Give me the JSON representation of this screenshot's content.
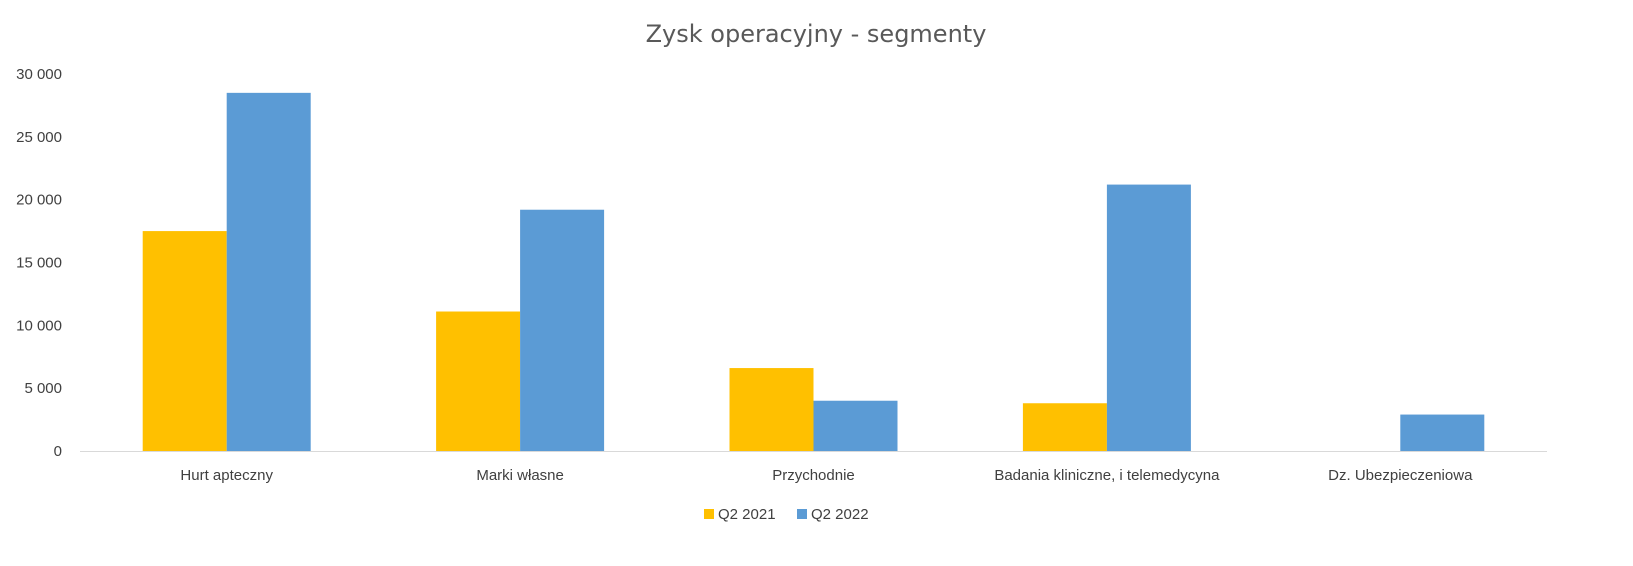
{
  "chart_data": {
    "type": "bar",
    "title": "Zysk operacyjny - segmenty",
    "xlabel": "",
    "ylabel": "",
    "categories": [
      "Hurt apteczny",
      "Marki własne",
      "Przychodnie",
      "Badania kliniczne, i telemedycyna",
      "Dz. Ubezpieczeniowa"
    ],
    "series": [
      {
        "name": "Q2 2021",
        "color": "#FFC000",
        "values": [
          17500,
          11100,
          6600,
          3800,
          0
        ]
      },
      {
        "name": "Q2 2022",
        "color": "#5B9BD5",
        "values": [
          28500,
          19200,
          4000,
          21200,
          2900
        ]
      }
    ],
    "ylim": [
      0,
      30000
    ],
    "yticks": [
      0,
      5000,
      10000,
      15000,
      20000,
      25000,
      30000
    ],
    "ytick_labels": [
      "0",
      "5 000",
      "10 000",
      "15 000",
      "20 000",
      "25 000",
      "30 000"
    ],
    "grid": false,
    "legend_position": "bottom"
  }
}
